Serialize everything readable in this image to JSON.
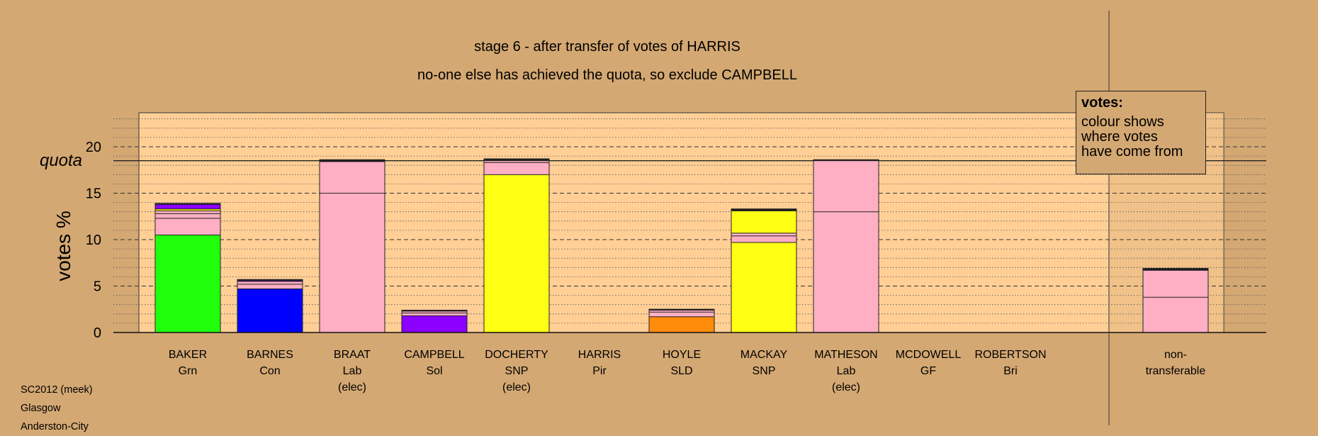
{
  "chart_data": {
    "type": "bar",
    "title": "stage 6 - after transfer of votes of HARRIS",
    "subtitle": "no-one else has achieved the quota, so exclude CAMPBELL",
    "ylabel": "votes %",
    "ylim": [
      0,
      23
    ],
    "yticks": [
      0,
      5,
      10,
      15,
      20
    ],
    "quota": 18.5,
    "quota_label": "quota",
    "grid": true,
    "categories": [
      {
        "name": "BAKER",
        "party": "Grn",
        "note": ""
      },
      {
        "name": "BARNES",
        "party": "Con",
        "note": ""
      },
      {
        "name": "BRAAT",
        "party": "Lab",
        "note": "(elec)"
      },
      {
        "name": "CAMPBELL",
        "party": "Sol",
        "note": ""
      },
      {
        "name": "DOCHERTY",
        "party": "SNP",
        "note": "(elec)"
      },
      {
        "name": "HARRIS",
        "party": "Pir",
        "note": ""
      },
      {
        "name": "HOYLE",
        "party": "SLD",
        "note": ""
      },
      {
        "name": "MACKAY",
        "party": "SNP",
        "note": ""
      },
      {
        "name": "MATHESON",
        "party": "Lab",
        "note": "(elec)"
      },
      {
        "name": "MCDOWELL",
        "party": "GF",
        "note": ""
      },
      {
        "name": "ROBERTSON",
        "party": "Bri",
        "note": ""
      },
      {
        "name": "non-",
        "party": "transferable",
        "note": ""
      }
    ],
    "stacks": [
      [
        {
          "v": 10.5,
          "c": "#22ff0d"
        },
        {
          "v": 1.8,
          "c": "#ffafc4"
        },
        {
          "v": 0.5,
          "c": "#ffafc4"
        },
        {
          "v": 0.3,
          "c": "#ffafc4"
        },
        {
          "v": 0.2,
          "c": "#ffff14"
        },
        {
          "v": 0.5,
          "c": "#8b00ff"
        },
        {
          "v": 0.1,
          "c": "#1c1c1c"
        }
      ],
      [
        {
          "v": 4.7,
          "c": "#0000ff"
        },
        {
          "v": 0.5,
          "c": "#ffafc4"
        },
        {
          "v": 0.3,
          "c": "#ffafc4"
        },
        {
          "v": 0.1,
          "c": "#8b00ff"
        },
        {
          "v": 0.1,
          "c": "#1c1c1c"
        }
      ],
      [
        {
          "v": 15.0,
          "c": "#ffafc4"
        },
        {
          "v": 3.4,
          "c": "#ffafc4"
        },
        {
          "v": 0.2,
          "c": "#1c1c1c"
        }
      ],
      [
        {
          "v": 1.8,
          "c": "#8b00ff"
        },
        {
          "v": 0.3,
          "c": "#ffafc4"
        },
        {
          "v": 0.2,
          "c": "#ffafc4"
        },
        {
          "v": 0.1,
          "c": "#1c1c1c"
        }
      ],
      [
        {
          "v": 17.0,
          "c": "#ffff14"
        },
        {
          "v": 1.3,
          "c": "#ffafc4"
        },
        {
          "v": 0.2,
          "c": "#ffafc4"
        },
        {
          "v": 0.2,
          "c": "#1c1c1c"
        }
      ],
      [],
      [
        {
          "v": 1.7,
          "c": "#ff8c0a"
        },
        {
          "v": 0.5,
          "c": "#ffafc4"
        },
        {
          "v": 0.2,
          "c": "#ffafc4"
        },
        {
          "v": 0.1,
          "c": "#1c1c1c"
        }
      ],
      [
        {
          "v": 9.7,
          "c": "#ffff14"
        },
        {
          "v": 0.7,
          "c": "#ffafc4"
        },
        {
          "v": 0.3,
          "c": "#ffafc4"
        },
        {
          "v": 2.4,
          "c": "#ffff14"
        },
        {
          "v": 0.2,
          "c": "#1c1c1c"
        }
      ],
      [
        {
          "v": 13.0,
          "c": "#ffafc4"
        },
        {
          "v": 5.5,
          "c": "#ffafc4"
        },
        {
          "v": 0.1,
          "c": "#1c1c1c"
        }
      ],
      [],
      [],
      [
        {
          "v": 3.8,
          "c": "#ffafc4"
        },
        {
          "v": 2.9,
          "c": "#ffafc4"
        },
        {
          "v": 0.2,
          "c": "#1c1c1c"
        }
      ]
    ],
    "colors": {
      "background": "#d4a873",
      "plot_area": "#ffcf96",
      "Grn": "#22ff0d",
      "Con": "#0000ff",
      "Lab": "#ffafc4",
      "Sol": "#8b00ff",
      "SNP": "#ffff14",
      "SLD": "#ff8c0a"
    }
  },
  "legend": {
    "title": "votes:",
    "lines": [
      "colour shows",
      "where votes",
      "have come from"
    ]
  },
  "source": {
    "lines": [
      "SC2012 (meek)",
      "Glasgow",
      "Anderston-City"
    ]
  }
}
